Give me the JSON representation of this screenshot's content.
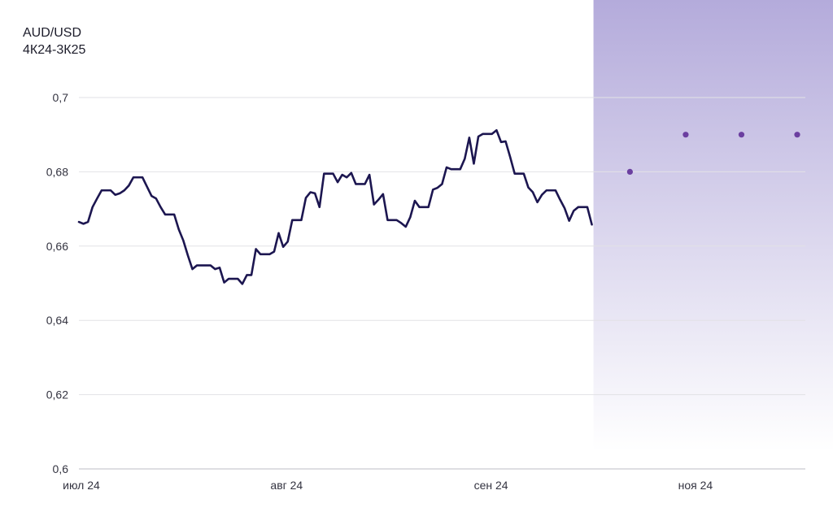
{
  "chart_data": {
    "type": "line",
    "title": "AUD/USD",
    "subtitle": "4К24-3К25",
    "ylim": [
      0.6,
      0.7
    ],
    "y_ticks": [
      {
        "value": 0.7,
        "label": "0,7"
      },
      {
        "value": 0.68,
        "label": "0,68"
      },
      {
        "value": 0.66,
        "label": "0,66"
      },
      {
        "value": 0.64,
        "label": "0,64"
      },
      {
        "value": 0.62,
        "label": "0,62"
      },
      {
        "value": 0.6,
        "label": "0,6"
      }
    ],
    "x_ticks": [
      {
        "index": 0,
        "label": "июл 24"
      },
      {
        "index": 55,
        "label": "авг 24"
      },
      {
        "index": 110,
        "label": "сен 24"
      },
      {
        "index": 165,
        "label": "ноя 24"
      }
    ],
    "x_range": [
      0,
      195
    ],
    "grid": true,
    "colors": {
      "line": "#1c1650",
      "forecast_points": "#6b3fa0",
      "forecast_region_top": "#b4abdb",
      "forecast_region_bottom": "#ffffff",
      "grid": "#e2e2e6"
    },
    "forecast_region_start": 138,
    "series": [
      {
        "values": [
          0.6665,
          0.666,
          0.6665,
          0.6705,
          0.6728,
          0.675,
          0.675,
          0.675,
          0.6738,
          0.6742,
          0.675,
          0.6763,
          0.6785,
          0.6785,
          0.6785,
          0.676,
          0.6735,
          0.6728,
          0.6705,
          0.6685,
          0.6685,
          0.6685,
          0.6645,
          0.6615,
          0.6575,
          0.6538,
          0.6548,
          0.6548,
          0.6548,
          0.6548,
          0.6538,
          0.6542,
          0.6502,
          0.6512,
          0.6512,
          0.6512,
          0.6498,
          0.6522,
          0.6522,
          0.6592,
          0.6578,
          0.6578,
          0.6578,
          0.6585,
          0.6635,
          0.6598,
          0.6612,
          0.667,
          0.667,
          0.667,
          0.673,
          0.6745,
          0.6742,
          0.6705,
          0.6795,
          0.6795,
          0.6795,
          0.6772,
          0.6792,
          0.6785,
          0.6797,
          0.6767,
          0.6767,
          0.6767,
          0.6792,
          0.6712,
          0.6725,
          0.674,
          0.667,
          0.667,
          0.667,
          0.6662,
          0.6652,
          0.6678,
          0.6722,
          0.6705,
          0.6705,
          0.6705,
          0.6752,
          0.6757,
          0.6767,
          0.6812,
          0.6807,
          0.6807,
          0.6807,
          0.6835,
          0.6892,
          0.6822,
          0.6895,
          0.6902,
          0.6902,
          0.6902,
          0.6912,
          0.688,
          0.6882,
          0.684,
          0.6795,
          0.6795,
          0.6795,
          0.6758,
          0.6745,
          0.6718,
          0.6738,
          0.675,
          0.675,
          0.675,
          0.6725,
          0.6702,
          0.6668,
          0.6695,
          0.6705,
          0.6705,
          0.6705,
          0.6658
        ]
      },
      {
        "name": "",
        "points": [
          {
            "x": 150,
            "y": 0.68
          },
          {
            "x": 165,
            "y": 0.69
          },
          {
            "x": 180,
            "y": 0.69
          },
          {
            "x": 195,
            "y": 0.69
          }
        ]
      }
    ]
  }
}
